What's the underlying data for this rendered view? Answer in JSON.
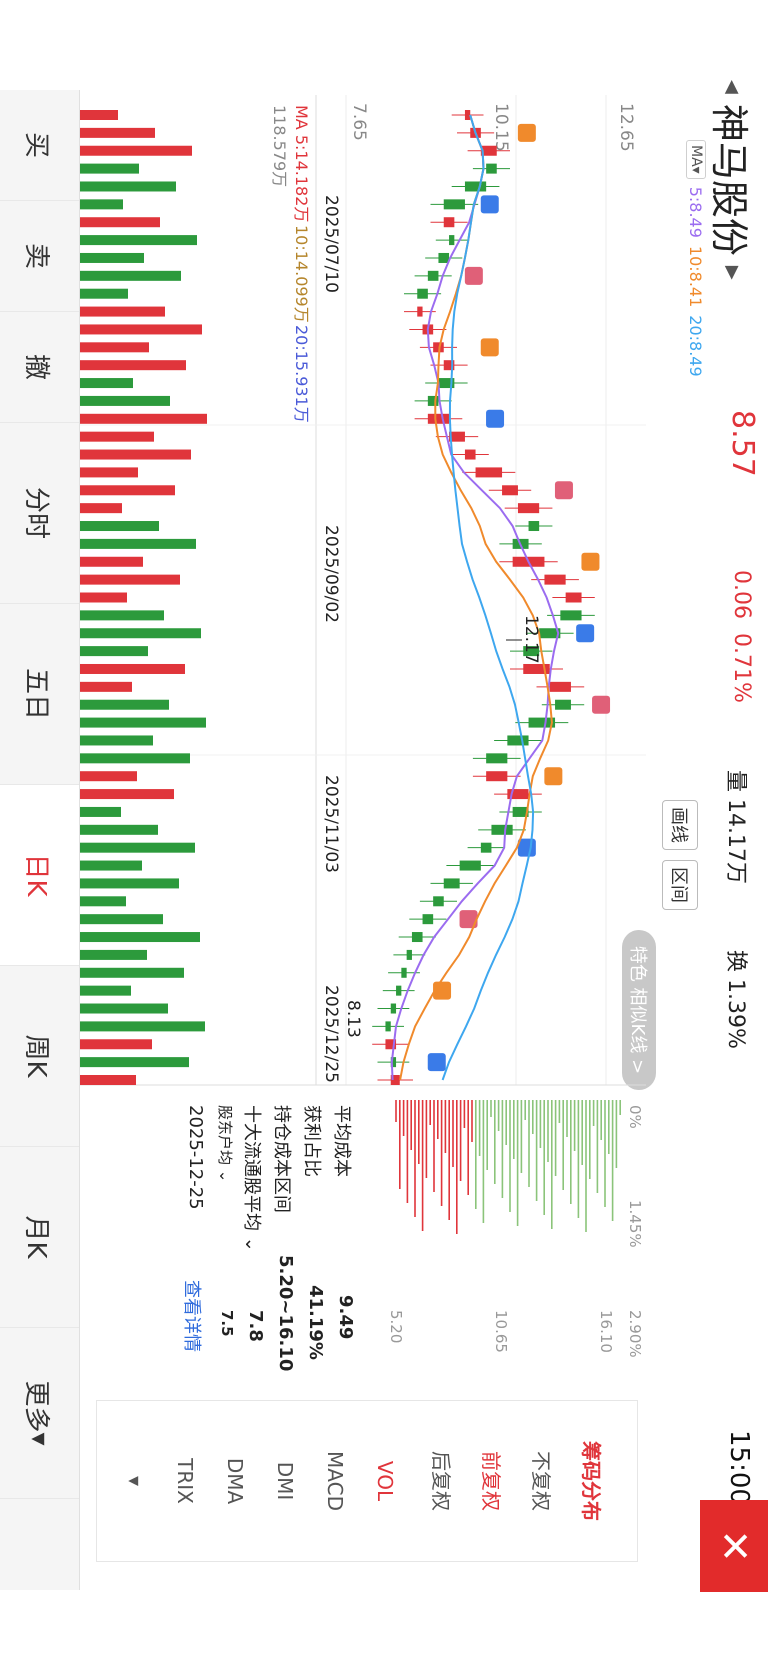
{
  "header": {
    "stock_name": "神马股份",
    "price": "8.57",
    "change": "0.06",
    "change_pct": "0.71%",
    "volume_label": "量",
    "volume_value": "14.17万",
    "turnover_label": "换",
    "turnover_value": "1.39%",
    "time": "15:00"
  },
  "ma_bar": {
    "button": "MA",
    "ma5": "5:8.49",
    "ma10": "10:8.41",
    "ma20": "20:8.49"
  },
  "tools": {
    "draw": "画线",
    "range": "区间",
    "feature": "特色 相似K线 >"
  },
  "chart": {
    "y_ticks": [
      "12.65",
      "10.15",
      "7.65"
    ],
    "dates": [
      "2025/07/10",
      "2025/09/02",
      "2025/11/03",
      "2025/12/25"
    ],
    "high_mark": "12.17",
    "low_mark": "8.13",
    "vol_ma": {
      "ma5": "MA 5:14.182万",
      "ma10": "10:14.099万",
      "ma20": "20:15.931万"
    },
    "vol_max": "118.579万"
  },
  "chart_data": {
    "type": "candlestick",
    "title": "",
    "x_range": [
      "2025/07/10",
      "2025/12/25"
    ],
    "y_range": [
      7.65,
      12.65
    ],
    "high": 12.17,
    "low": 8.13,
    "close_series": [
      9.9,
      10.1,
      10.4,
      10.2,
      9.8,
      9.4,
      9.6,
      9.5,
      9.3,
      9.1,
      8.9,
      9.0,
      9.2,
      9.4,
      9.6,
      9.3,
      9.1,
      9.5,
      9.8,
      10.0,
      10.5,
      10.8,
      11.2,
      11.0,
      10.7,
      11.3,
      11.7,
      12.0,
      11.6,
      11.2,
      10.9,
      11.4,
      11.8,
      11.5,
      11.0,
      10.6,
      10.2,
      10.6,
      11.0,
      10.7,
      10.3,
      10.1,
      9.7,
      9.4,
      9.2,
      9.0,
      8.8,
      8.7,
      8.6,
      8.5,
      8.4,
      8.3,
      8.5,
      8.4,
      8.57
    ]
  },
  "chip": {
    "pct_ticks": [
      "0%",
      "1.45%",
      "2.90%"
    ],
    "price_ticks": [
      "16.10",
      "10.65",
      "5.20"
    ],
    "avg_cost_label": "平均成本",
    "avg_cost": "9.49",
    "profit_label": "获利占比",
    "profit": "41.19%",
    "range_label": "持仓成本区间",
    "range": "5.20~16.10",
    "top10_label": "十大流通股平均",
    "top10": "7.8",
    "extra_label": "股东户均",
    "extra": "7.5",
    "date": "2025-12-25",
    "detail_link": "查看详情"
  },
  "indicators": {
    "title": "筹码分布",
    "items": [
      "不复权",
      "前复权",
      "后复权",
      "VOL",
      "MACD",
      "DMI",
      "DMA",
      "TRIX"
    ]
  },
  "nav": [
    "买",
    "卖",
    "撤",
    "分时",
    "五日",
    "日K",
    "周K",
    "月K",
    "更多"
  ],
  "colors": {
    "up": "#e0353b",
    "down": "#2c9a3c",
    "ma5": "#9b6cf0",
    "ma10": "#f08a2c",
    "ma20": "#3ea7ef",
    "marker_t": "#f08a2c",
    "marker_s": "#3a7be8",
    "marker_b": "#e06078"
  }
}
